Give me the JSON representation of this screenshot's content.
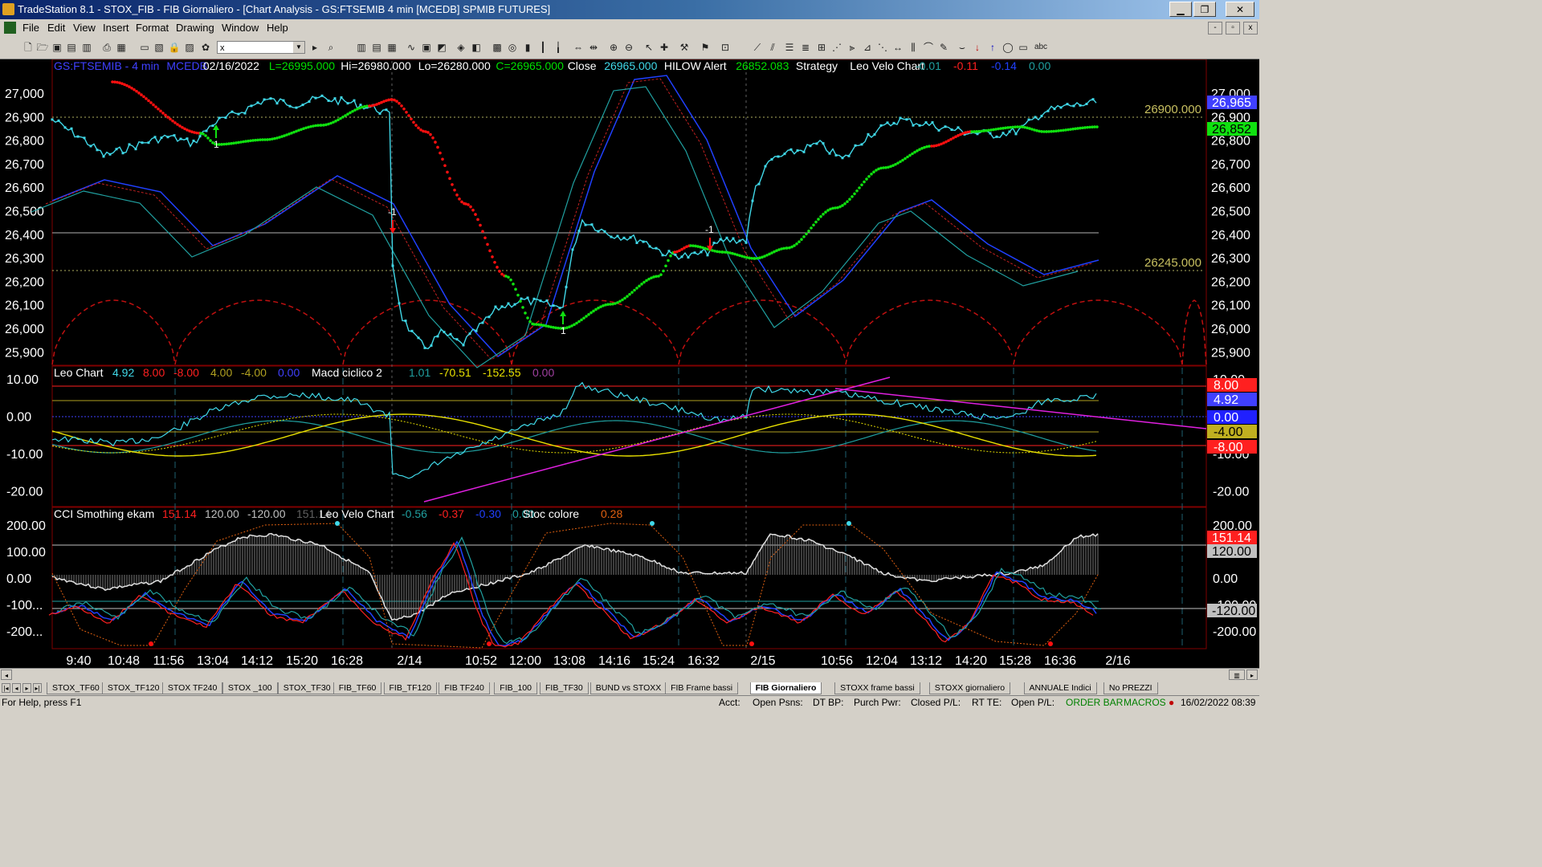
{
  "window": {
    "title": "TradeStation 8.1 - STOX_FIB - FIB Giornaliero - [Chart Analysis - GS:FTSEMIB  4 min  [MCEDB] SPMIB FUTURES]",
    "min_label": "▁",
    "max_label": "❐",
    "close_label": "✕"
  },
  "menu": [
    "File",
    "Edit",
    "View",
    "Insert",
    "Format",
    "Drawing",
    "Window",
    "Help"
  ],
  "mdi_buttons": {
    "min": "-",
    "restore": "▫",
    "close": "x"
  },
  "toolbar": {
    "symbol_value": "x",
    "text_tool": "abc"
  },
  "chart": {
    "header_price": {
      "symbol": "GS:FTSEMIB - 4 min",
      "feed": "MCEDB",
      "date": "02/16/2022",
      "last": "L=26995.000",
      "high": "Hi=26980.000",
      "low": "Lo=26280.000",
      "close_eq": "C=26965.000",
      "close_label": "Close",
      "close_val": "26965.000",
      "hilow_label": "HILOW Alert",
      "hilow_val": "26852.083",
      "strategy_label": "Strategy",
      "leo_label": "Leo Velo Chart",
      "leo_vals": [
        "-0.01",
        "-0.11",
        "-0.14",
        "0.00"
      ]
    },
    "header_macd": {
      "leo_label": "Leo Chart",
      "leo_vals": [
        "4.92",
        "8.00",
        "-8.00",
        "4.00",
        "-4.00",
        "0.00"
      ],
      "macd_label": "Macd ciclico 2",
      "macd_vals": [
        "1.01",
        "-70.51",
        "-152.55",
        "0.00"
      ]
    },
    "header_cci": {
      "cci_label": "CCI Smothing ekam",
      "cci_vals": [
        "151.14",
        "120.00",
        "-120.00",
        "151.14"
      ],
      "velo_label": "Leo Velo Chart",
      "velo_vals": [
        "-0.56",
        "-0.37",
        "-0.30",
        "0.00"
      ],
      "stoc_label": "Stoc colore",
      "stoc_val": "0.28"
    },
    "price_axis": [
      "27,000",
      "26,900",
      "26,800",
      "26,700",
      "26,600",
      "26,500",
      "26,400",
      "26,300",
      "26,200",
      "26,100",
      "26,000",
      "25,900"
    ],
    "price_badges": {
      "last": "26,965",
      "hilow": "26,852"
    },
    "level_labels": [
      "26900.000",
      "26245.000"
    ],
    "macd_axis": [
      "10.00",
      "0.00",
      "-10.00",
      "-20.00"
    ],
    "macd_badges": [
      "8.00",
      "4.92",
      "0.00",
      "-4.00",
      "-8.00"
    ],
    "cci_axis": [
      "200.00",
      "100.00",
      "0.00",
      "-100.00",
      "-200.00"
    ],
    "cci_badges": [
      "151.14",
      "120.00",
      "-120.00"
    ],
    "time_axis": [
      "9:40",
      "10:48",
      "11:56",
      "13:04",
      "14:12",
      "15:20",
      "16:28",
      "2/14",
      "10:52",
      "12:00",
      "13:08",
      "14:16",
      "15:24",
      "16:32",
      "2/15",
      "10:56",
      "12:04",
      "13:12",
      "14:20",
      "15:28",
      "16:36",
      "2/16"
    ],
    "signal_labels": [
      "1",
      "-1",
      "1",
      "-1"
    ],
    "colors": {
      "price": "#40d8e8",
      "green": "#00e000",
      "red": "#ff2020",
      "blue": "#2040ff",
      "teal": "#20a0a0",
      "yellow": "#e8e000",
      "magenta": "#e020e0",
      "badge_blue": "#4040ff"
    },
    "chart_data": {
      "type": "line",
      "title": "GS:FTSEMIB - 4 min",
      "x": [
        "9:40",
        "10:48",
        "11:56",
        "13:04",
        "14:12",
        "15:20",
        "16:28",
        "2/14",
        "10:52",
        "12:00",
        "13:08",
        "14:16",
        "15:24",
        "16:32",
        "2/15",
        "10:56",
        "12:04",
        "13:12",
        "14:20",
        "15:28",
        "16:36",
        "2/16"
      ],
      "series": [
        {
          "name": "Close",
          "values": [
            26860,
            26760,
            26800,
            26810,
            26920,
            26950,
            26950,
            25960,
            25940,
            26060,
            26100,
            26420,
            26380,
            26300,
            26400,
            26740,
            26880,
            26880,
            26850,
            26830,
            26900,
            26965
          ]
        },
        {
          "name": "HILOW Alert",
          "values": [
            26910,
            26860,
            26780,
            26800,
            26850,
            26920,
            26970,
            26780,
            26300,
            26040,
            26050,
            26180,
            26300,
            26350,
            26300,
            26440,
            26700,
            26800,
            26840,
            26850,
            26850,
            26852
          ]
        }
      ],
      "ylim": [
        25850,
        27050
      ]
    }
  },
  "tabs": [
    "STOX_TF60",
    "STOX_TF120",
    "STOX TF240",
    "STOX _100",
    "STOX_TF30",
    "FIB_TF60",
    "FIB_TF120",
    "FIB TF240",
    "FIB_100",
    "FIB_TF30",
    "BUND vs STOXX",
    "FIB Frame bassi",
    "FIB Giornaliero",
    "STOXX frame bassi",
    "STOXX giornaliero",
    "ANNUALE Indici",
    "No PREZZI"
  ],
  "tab_nav": [
    "|◂",
    "◂",
    "▸",
    "▸|"
  ],
  "status": {
    "help": "For Help, press F1",
    "acct": "Acct:",
    "open_psns": "Open Psns:",
    "dt_bp": "DT BP:",
    "purch_pwr": "Purch Pwr:",
    "closed_pl": "Closed P/L:",
    "rt_te": "RT TE:",
    "open_pl": "Open P/L:",
    "order_bar": "ORDER BAR",
    "macros": "MACROS",
    "datetime": "16/02/2022 08:39"
  }
}
